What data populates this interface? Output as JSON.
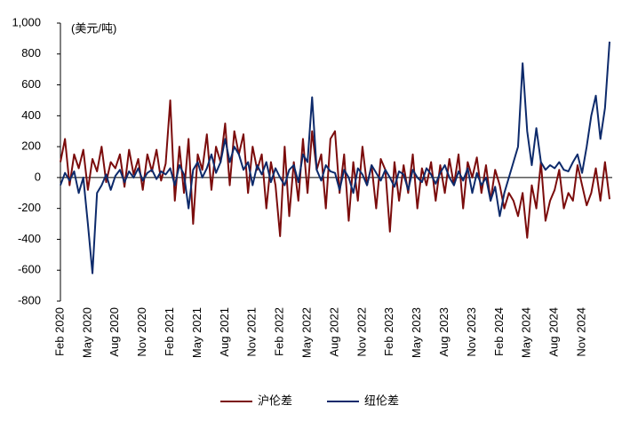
{
  "chart_data": {
    "type": "line",
    "annotation": "(美元/吨)",
    "categories": [
      "Feb 2020",
      null,
      null,
      null,
      null,
      null,
      "May 2020",
      null,
      null,
      null,
      null,
      null,
      "Aug 2020",
      null,
      null,
      null,
      null,
      null,
      "Nov 2020",
      null,
      null,
      null,
      null,
      null,
      "Feb 2021",
      null,
      null,
      null,
      null,
      null,
      "May 2021",
      null,
      null,
      null,
      null,
      null,
      "Aug 2021",
      null,
      null,
      null,
      null,
      null,
      "Nov 2021",
      null,
      null,
      null,
      null,
      null,
      "Feb 2022",
      null,
      null,
      null,
      null,
      null,
      "May 2022",
      null,
      null,
      null,
      null,
      null,
      "Aug 2022",
      null,
      null,
      null,
      null,
      null,
      "Nov 2022",
      null,
      null,
      null,
      null,
      null,
      "Feb 2023",
      null,
      null,
      null,
      null,
      null,
      "May 2023",
      null,
      null,
      null,
      null,
      null,
      "Aug 2023",
      null,
      null,
      null,
      null,
      null,
      "Nov 2023",
      null,
      null,
      null,
      null,
      null,
      "Feb 2024",
      null,
      null,
      null,
      null,
      null,
      "May 2024",
      null,
      null,
      null,
      null,
      null,
      "Aug 2024",
      null,
      null,
      null,
      null,
      null,
      "Nov 2024",
      null,
      null,
      null,
      null,
      null,
      null
    ],
    "series": [
      {
        "name": "沪伦差",
        "color": "#7b0c0c",
        "values": [
          100,
          250,
          -50,
          150,
          60,
          180,
          -80,
          120,
          40,
          200,
          -30,
          100,
          60,
          150,
          -60,
          180,
          20,
          120,
          -80,
          150,
          40,
          180,
          -20,
          90,
          500,
          -150,
          200,
          -100,
          250,
          -300,
          150,
          50,
          280,
          -80,
          200,
          100,
          350,
          -50,
          300,
          150,
          280,
          -100,
          200,
          50,
          150,
          -200,
          100,
          -50,
          -380,
          200,
          -250,
          100,
          -150,
          250,
          -100,
          300,
          50,
          150,
          -200,
          250,
          300,
          -100,
          150,
          -280,
          100,
          -150,
          200,
          -50,
          80,
          -200,
          120,
          50,
          -350,
          100,
          -150,
          80,
          -100,
          150,
          -200,
          60,
          -50,
          100,
          -150,
          80,
          -100,
          120,
          -50,
          150,
          -200,
          100,
          0,
          130,
          -100,
          80,
          -150,
          50,
          -50,
          -200,
          -100,
          -150,
          -250,
          -100,
          -390,
          -50,
          -200,
          100,
          -280,
          -150,
          -80,
          50,
          -200,
          -100,
          -150,
          80,
          -50,
          -180,
          -100,
          60,
          -150,
          100,
          -140
        ]
      },
      {
        "name": "纽伦差",
        "color": "#0d2a6b",
        "values": [
          -50,
          30,
          -20,
          40,
          -100,
          0,
          -300,
          -620,
          -100,
          -50,
          20,
          -80,
          10,
          50,
          -30,
          40,
          0,
          60,
          -20,
          30,
          50,
          -10,
          40,
          20,
          60,
          -50,
          80,
          20,
          -200,
          50,
          100,
          0,
          60,
          150,
          30,
          100,
          250,
          100,
          200,
          150,
          50,
          100,
          -50,
          80,
          20,
          100,
          -30,
          60,
          0,
          -50,
          50,
          80,
          -30,
          150,
          100,
          520,
          50,
          -20,
          80,
          40,
          30,
          -80,
          50,
          0,
          -100,
          60,
          20,
          -50,
          80,
          30,
          -20,
          50,
          0,
          -60,
          40,
          20,
          -80,
          50,
          0,
          -30,
          60,
          20,
          -40,
          30,
          80,
          0,
          -50,
          40,
          -20,
          60,
          -100,
          30,
          -50,
          0,
          -150,
          -60,
          -250,
          -100,
          0,
          100,
          200,
          740,
          300,
          80,
          320,
          100,
          50,
          80,
          60,
          100,
          50,
          40,
          100,
          150,
          30,
          200,
          400,
          530,
          250,
          450,
          880
        ]
      }
    ],
    "ylim": [
      -800,
      1000
    ],
    "yticks": [
      -800,
      -600,
      -400,
      -200,
      0,
      200,
      400,
      600,
      800,
      {
        "value": 1000,
        "label": "1,000"
      }
    ],
    "grid": false
  }
}
